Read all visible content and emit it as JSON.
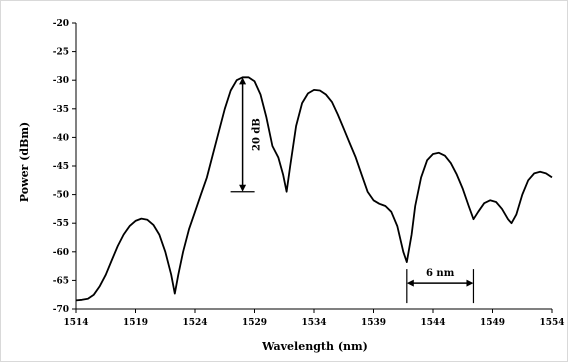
{
  "chart_data": {
    "type": "line",
    "title": "",
    "xlabel": "Wavelength (nm)",
    "ylabel": "Power (dBm)",
    "xlim": [
      1514,
      1554
    ],
    "ylim": [
      -70,
      -20
    ],
    "x_ticks": [
      "1514",
      "1519",
      "1524",
      "1529",
      "1534",
      "1539",
      "1544",
      "1549",
      "1554"
    ],
    "y_ticks": [
      "-20",
      "-25",
      "-30",
      "-35",
      "-40",
      "-45",
      "-50",
      "-55",
      "-60",
      "-65",
      "-70"
    ],
    "grid": false,
    "legend": "none",
    "series": [
      {
        "color": "#000000",
        "points": [
          [
            1514.0,
            -68.5
          ],
          [
            1514.5,
            -68.4
          ],
          [
            1515.0,
            -68.2
          ],
          [
            1515.5,
            -67.5
          ],
          [
            1516.0,
            -66.0
          ],
          [
            1516.5,
            -64.0
          ],
          [
            1517.0,
            -61.5
          ],
          [
            1517.5,
            -59.0
          ],
          [
            1518.0,
            -57.0
          ],
          [
            1518.5,
            -55.5
          ],
          [
            1519.0,
            -54.6
          ],
          [
            1519.5,
            -54.2
          ],
          [
            1520.0,
            -54.4
          ],
          [
            1520.5,
            -55.3
          ],
          [
            1521.0,
            -57.0
          ],
          [
            1521.5,
            -60.0
          ],
          [
            1522.0,
            -64.0
          ],
          [
            1522.3,
            -67.3
          ],
          [
            1522.6,
            -64.0
          ],
          [
            1523.0,
            -60.0
          ],
          [
            1523.5,
            -56.0
          ],
          [
            1524.0,
            -53.0
          ],
          [
            1524.5,
            -50.0
          ],
          [
            1525.0,
            -47.0
          ],
          [
            1525.5,
            -43.0
          ],
          [
            1526.0,
            -39.0
          ],
          [
            1526.5,
            -35.0
          ],
          [
            1527.0,
            -31.8
          ],
          [
            1527.5,
            -30.0
          ],
          [
            1528.0,
            -29.5
          ],
          [
            1528.5,
            -29.5
          ],
          [
            1529.0,
            -30.2
          ],
          [
            1529.5,
            -32.5
          ],
          [
            1530.0,
            -36.5
          ],
          [
            1530.5,
            -41.5
          ],
          [
            1531.0,
            -43.5
          ],
          [
            1531.4,
            -46.5
          ],
          [
            1531.7,
            -49.5
          ],
          [
            1532.0,
            -45.0
          ],
          [
            1532.5,
            -38.0
          ],
          [
            1533.0,
            -34.0
          ],
          [
            1533.5,
            -32.3
          ],
          [
            1534.0,
            -31.7
          ],
          [
            1534.5,
            -31.8
          ],
          [
            1535.0,
            -32.5
          ],
          [
            1535.5,
            -33.8
          ],
          [
            1536.0,
            -36.0
          ],
          [
            1536.5,
            -38.5
          ],
          [
            1537.0,
            -41.0
          ],
          [
            1537.5,
            -43.5
          ],
          [
            1538.0,
            -46.5
          ],
          [
            1538.5,
            -49.5
          ],
          [
            1539.0,
            -51.0
          ],
          [
            1539.5,
            -51.6
          ],
          [
            1540.0,
            -52.0
          ],
          [
            1540.5,
            -53.0
          ],
          [
            1541.0,
            -55.5
          ],
          [
            1541.5,
            -60.0
          ],
          [
            1541.8,
            -61.8
          ],
          [
            1542.2,
            -57.0
          ],
          [
            1542.5,
            -52.0
          ],
          [
            1543.0,
            -47.0
          ],
          [
            1543.5,
            -44.0
          ],
          [
            1544.0,
            -42.9
          ],
          [
            1544.5,
            -42.7
          ],
          [
            1545.0,
            -43.2
          ],
          [
            1545.5,
            -44.5
          ],
          [
            1546.0,
            -46.5
          ],
          [
            1546.5,
            -49.0
          ],
          [
            1547.0,
            -52.0
          ],
          [
            1547.4,
            -54.3
          ],
          [
            1547.8,
            -53.0
          ],
          [
            1548.3,
            -51.5
          ],
          [
            1548.8,
            -51.0
          ],
          [
            1549.3,
            -51.3
          ],
          [
            1549.8,
            -52.5
          ],
          [
            1550.3,
            -54.3
          ],
          [
            1550.6,
            -55.0
          ],
          [
            1551.0,
            -53.5
          ],
          [
            1551.5,
            -50.0
          ],
          [
            1552.0,
            -47.5
          ],
          [
            1552.5,
            -46.3
          ],
          [
            1553.0,
            -46.0
          ],
          [
            1553.5,
            -46.3
          ],
          [
            1554.0,
            -47.0
          ]
        ]
      }
    ],
    "annotations": [
      {
        "label": "20 dB",
        "x": 1528.0,
        "y1": -29.5,
        "y2": -49.5
      },
      {
        "label": "6 nm",
        "x1": 1541.8,
        "x2": 1547.4,
        "y": -61.8
      }
    ]
  }
}
